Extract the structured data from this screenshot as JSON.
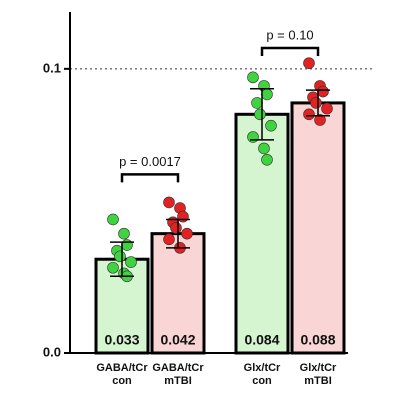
{
  "chart_data": {
    "type": "bar",
    "categories": [
      [
        "GABA/tCr",
        "con"
      ],
      [
        "GABA/tCr",
        "mTBI"
      ],
      [
        "Glx/tCr",
        "con"
      ],
      [
        "Glx/tCr",
        "mTBI"
      ]
    ],
    "series": [
      {
        "values": [
          0.033,
          0.042,
          0.084,
          0.088
        ],
        "errors": [
          0.006,
          0.005,
          0.009,
          0.0045
        ]
      }
    ],
    "bar_colors": [
      "#d4f5cf",
      "#f9d5d5",
      "#d4f5cf",
      "#f9d5d5"
    ],
    "point_colors": [
      "#3fd43f",
      "#e22222",
      "#3fd43f",
      "#e22222"
    ],
    "points": [
      [
        0.047,
        0.042,
        0.038,
        0.036,
        0.034,
        0.032,
        0.03,
        0.028,
        0.027
      ],
      [
        0.053,
        0.051,
        0.048,
        0.046,
        0.044,
        0.042,
        0.04,
        0.037
      ],
      [
        0.097,
        0.094,
        0.091,
        0.088,
        0.084,
        0.08,
        0.076,
        0.072,
        0.068
      ],
      [
        0.102,
        0.094,
        0.092,
        0.09,
        0.088,
        0.086,
        0.084,
        0.082
      ]
    ],
    "ylim": [
      0,
      0.12
    ],
    "yticks": [
      {
        "value": 0,
        "label": "0.0"
      },
      0.1
    ],
    "reference_line": 0.1,
    "comparisons": [
      {
        "pair": [
          0,
          1
        ],
        "label": "p = 0.0017"
      },
      {
        "pair": [
          2,
          3
        ],
        "label": "p = 0.10"
      }
    ]
  }
}
